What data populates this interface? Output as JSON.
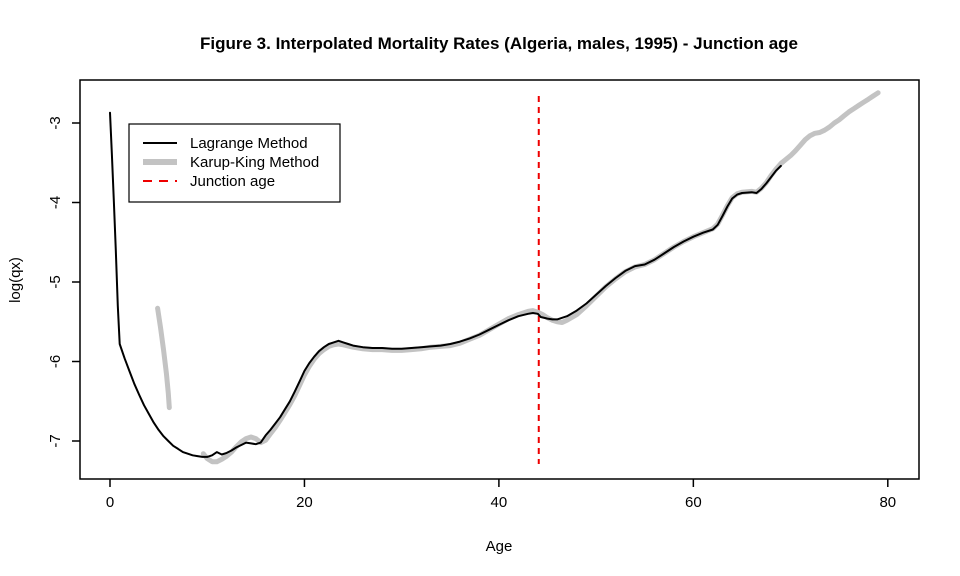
{
  "title": "Figure 3. Interpolated Mortality Rates (Algeria, males, 1995) - Junction age",
  "colors": {
    "lagrange": "#000000",
    "karup_king": "#c3c3c3",
    "junction": "#ee0000",
    "frame": "#000000"
  },
  "chart_data": {
    "type": "line",
    "title": "Figure 3. Interpolated Mortality Rates (Algeria, males, 1995) - Junction age",
    "xlabel": "Age",
    "ylabel": "log(qx)",
    "xlim": [
      -3,
      83
    ],
    "ylim": [
      -7.45,
      -2.45
    ],
    "x_ticks": [
      0,
      20,
      40,
      60,
      80
    ],
    "y_ticks": [
      -3,
      -4,
      -5,
      -6,
      -7
    ],
    "grid": false,
    "legend_position": "top-left",
    "junction_age": 44.1,
    "junction_line_span": [
      -7.29,
      -2.66
    ],
    "legend": [
      {
        "label": "Lagrange Method",
        "series_key": "lagrange",
        "style": "solid-thin"
      },
      {
        "label": "Karup-King Method",
        "series_key": "karup_king",
        "style": "solid-thick"
      },
      {
        "label": "Junction age",
        "series_key": "junction",
        "style": "dashed"
      }
    ],
    "series": [
      {
        "name": "Karup-King Method (early segment, ages 5-6)",
        "key": "karup_king",
        "style": "solid-thick",
        "points": [
          [
            4.9,
            -5.33
          ],
          [
            5.2,
            -5.58
          ],
          [
            5.5,
            -5.85
          ],
          [
            5.8,
            -6.15
          ],
          [
            6.0,
            -6.4
          ],
          [
            6.1,
            -6.58
          ]
        ]
      },
      {
        "name": "Karup-King Method",
        "key": "karup_king",
        "style": "solid-thick",
        "points": [
          [
            9.6,
            -7.16
          ],
          [
            10,
            -7.22
          ],
          [
            10.5,
            -7.26
          ],
          [
            11,
            -7.26
          ],
          [
            11.5,
            -7.23
          ],
          [
            12,
            -7.19
          ],
          [
            12.5,
            -7.14
          ],
          [
            13,
            -7.07
          ],
          [
            13.5,
            -7.01
          ],
          [
            14,
            -6.97
          ],
          [
            14.5,
            -6.95
          ],
          [
            15,
            -6.97
          ],
          [
            15.5,
            -7.02
          ],
          [
            16,
            -6.99
          ],
          [
            16.5,
            -6.91
          ],
          [
            17,
            -6.83
          ],
          [
            17.5,
            -6.74
          ],
          [
            18,
            -6.64
          ],
          [
            18.5,
            -6.54
          ],
          [
            19,
            -6.43
          ],
          [
            19.5,
            -6.3
          ],
          [
            20,
            -6.17
          ],
          [
            20.5,
            -6.06
          ],
          [
            21,
            -5.97
          ],
          [
            21.5,
            -5.9
          ],
          [
            22,
            -5.85
          ],
          [
            22.5,
            -5.81
          ],
          [
            23,
            -5.79
          ],
          [
            23.5,
            -5.78
          ],
          [
            24,
            -5.79
          ],
          [
            25,
            -5.82
          ],
          [
            26,
            -5.84
          ],
          [
            27,
            -5.85
          ],
          [
            28,
            -5.85
          ],
          [
            29,
            -5.86
          ],
          [
            30,
            -5.86
          ],
          [
            31,
            -5.85
          ],
          [
            32,
            -5.84
          ],
          [
            33,
            -5.82
          ],
          [
            34,
            -5.81
          ],
          [
            35,
            -5.8
          ],
          [
            36,
            -5.77
          ],
          [
            37,
            -5.72
          ],
          [
            38,
            -5.67
          ],
          [
            39,
            -5.6
          ],
          [
            40,
            -5.53
          ],
          [
            41,
            -5.46
          ],
          [
            42,
            -5.41
          ],
          [
            43,
            -5.37
          ],
          [
            43.5,
            -5.36
          ],
          [
            44,
            -5.38
          ],
          [
            44.5,
            -5.41
          ],
          [
            45,
            -5.45
          ],
          [
            45.5,
            -5.48
          ],
          [
            46,
            -5.5
          ],
          [
            46.5,
            -5.51
          ],
          [
            47,
            -5.48
          ],
          [
            48,
            -5.41
          ],
          [
            49,
            -5.3
          ],
          [
            50,
            -5.18
          ],
          [
            51,
            -5.06
          ],
          [
            52,
            -4.96
          ],
          [
            53,
            -4.87
          ],
          [
            54,
            -4.81
          ],
          [
            55,
            -4.78
          ],
          [
            56,
            -4.72
          ],
          [
            57,
            -4.64
          ],
          [
            58,
            -4.56
          ],
          [
            59,
            -4.49
          ],
          [
            60,
            -4.43
          ],
          [
            61,
            -4.38
          ],
          [
            62,
            -4.33
          ],
          [
            62.5,
            -4.27
          ],
          [
            63,
            -4.16
          ],
          [
            63.5,
            -4.04
          ],
          [
            64,
            -3.94
          ],
          [
            64.5,
            -3.89
          ],
          [
            65,
            -3.87
          ],
          [
            66,
            -3.86
          ],
          [
            66.5,
            -3.87
          ],
          [
            67,
            -3.82
          ],
          [
            67.5,
            -3.75
          ],
          [
            68,
            -3.66
          ],
          [
            68.5,
            -3.58
          ],
          [
            69,
            -3.51
          ],
          [
            69.5,
            -3.46
          ],
          [
            70,
            -3.41
          ],
          [
            70.5,
            -3.35
          ],
          [
            71,
            -3.28
          ],
          [
            71.5,
            -3.21
          ],
          [
            72,
            -3.16
          ],
          [
            72.5,
            -3.13
          ],
          [
            73,
            -3.12
          ],
          [
            73.5,
            -3.09
          ],
          [
            74,
            -3.05
          ],
          [
            74.5,
            -3.0
          ],
          [
            75,
            -2.96
          ],
          [
            75.5,
            -2.91
          ],
          [
            76,
            -2.86
          ],
          [
            76.5,
            -2.82
          ],
          [
            77,
            -2.78
          ],
          [
            77.5,
            -2.74
          ],
          [
            78,
            -2.7
          ],
          [
            78.5,
            -2.66
          ],
          [
            79,
            -2.62
          ]
        ]
      },
      {
        "name": "Lagrange Method",
        "key": "lagrange",
        "style": "solid-thin",
        "points": [
          [
            0,
            -2.87
          ],
          [
            0.2,
            -3.4
          ],
          [
            0.4,
            -4.0
          ],
          [
            0.6,
            -4.6
          ],
          [
            0.8,
            -5.3
          ],
          [
            1,
            -5.78
          ],
          [
            1.5,
            -5.96
          ],
          [
            2,
            -6.12
          ],
          [
            2.5,
            -6.28
          ],
          [
            3,
            -6.42
          ],
          [
            3.5,
            -6.55
          ],
          [
            4,
            -6.66
          ],
          [
            4.5,
            -6.77
          ],
          [
            5,
            -6.86
          ],
          [
            5.5,
            -6.94
          ],
          [
            6,
            -7.0
          ],
          [
            6.5,
            -7.06
          ],
          [
            7,
            -7.1
          ],
          [
            7.5,
            -7.14
          ],
          [
            8,
            -7.16
          ],
          [
            8.5,
            -7.18
          ],
          [
            9,
            -7.19
          ],
          [
            9.5,
            -7.2
          ],
          [
            10,
            -7.2
          ],
          [
            10.5,
            -7.18
          ],
          [
            11,
            -7.14
          ],
          [
            11.5,
            -7.17
          ],
          [
            12,
            -7.15
          ],
          [
            12.5,
            -7.12
          ],
          [
            13,
            -7.08
          ],
          [
            13.5,
            -7.05
          ],
          [
            14,
            -7.02
          ],
          [
            14.5,
            -7.03
          ],
          [
            15,
            -7.04
          ],
          [
            15.5,
            -7.02
          ],
          [
            16,
            -6.93
          ],
          [
            16.5,
            -6.86
          ],
          [
            17,
            -6.78
          ],
          [
            17.5,
            -6.7
          ],
          [
            18,
            -6.6
          ],
          [
            18.5,
            -6.5
          ],
          [
            19,
            -6.38
          ],
          [
            19.5,
            -6.25
          ],
          [
            20,
            -6.12
          ],
          [
            20.5,
            -6.02
          ],
          [
            21,
            -5.94
          ],
          [
            21.5,
            -5.87
          ],
          [
            22,
            -5.82
          ],
          [
            22.5,
            -5.78
          ],
          [
            23,
            -5.76
          ],
          [
            23.5,
            -5.74
          ],
          [
            24,
            -5.76
          ],
          [
            24.5,
            -5.78
          ],
          [
            25,
            -5.8
          ],
          [
            26,
            -5.82
          ],
          [
            27,
            -5.83
          ],
          [
            28,
            -5.83
          ],
          [
            29,
            -5.84
          ],
          [
            30,
            -5.84
          ],
          [
            31,
            -5.83
          ],
          [
            32,
            -5.82
          ],
          [
            33,
            -5.81
          ],
          [
            34,
            -5.8
          ],
          [
            35,
            -5.78
          ],
          [
            36,
            -5.75
          ],
          [
            37,
            -5.71
          ],
          [
            38,
            -5.66
          ],
          [
            39,
            -5.6
          ],
          [
            40,
            -5.54
          ],
          [
            41,
            -5.48
          ],
          [
            42,
            -5.43
          ],
          [
            43,
            -5.4
          ],
          [
            43.5,
            -5.39
          ],
          [
            44,
            -5.4
          ],
          [
            44.3,
            -5.44
          ],
          [
            45,
            -5.46
          ],
          [
            45.5,
            -5.47
          ],
          [
            46,
            -5.47
          ],
          [
            46.5,
            -5.45
          ],
          [
            47,
            -5.43
          ],
          [
            48,
            -5.36
          ],
          [
            49,
            -5.27
          ],
          [
            50,
            -5.16
          ],
          [
            51,
            -5.05
          ],
          [
            52,
            -4.95
          ],
          [
            53,
            -4.86
          ],
          [
            54,
            -4.8
          ],
          [
            55,
            -4.78
          ],
          [
            56,
            -4.72
          ],
          [
            57,
            -4.64
          ],
          [
            58,
            -4.56
          ],
          [
            59,
            -4.49
          ],
          [
            60,
            -4.43
          ],
          [
            61,
            -4.38
          ],
          [
            62,
            -4.34
          ],
          [
            62.5,
            -4.28
          ],
          [
            63,
            -4.17
          ],
          [
            63.5,
            -4.05
          ],
          [
            64,
            -3.95
          ],
          [
            64.5,
            -3.9
          ],
          [
            65,
            -3.88
          ],
          [
            66,
            -3.87
          ],
          [
            66.5,
            -3.88
          ],
          [
            67,
            -3.83
          ],
          [
            67.5,
            -3.76
          ],
          [
            68,
            -3.68
          ],
          [
            68.5,
            -3.6
          ],
          [
            69,
            -3.54
          ]
        ]
      }
    ]
  }
}
